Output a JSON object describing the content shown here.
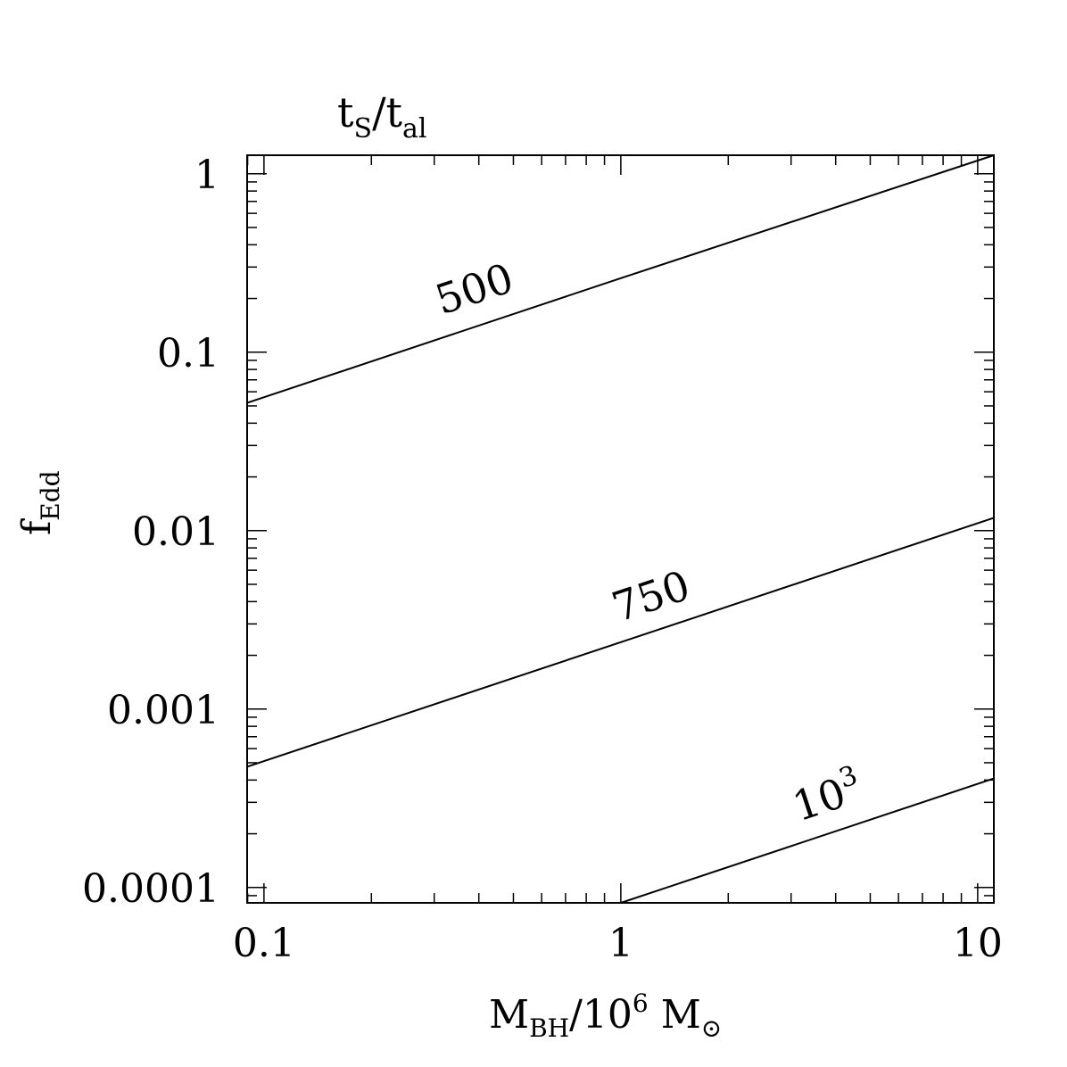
{
  "chart_data": {
    "type": "line",
    "title": {
      "main": "t",
      "sub1": "S",
      "sep": "/t",
      "sub2": "al"
    },
    "xlabel": {
      "main": "M",
      "sub": "BH",
      "mid": "/10",
      "sup": "6",
      "end": " M",
      "sun": "⊙"
    },
    "ylabel": {
      "main": "f",
      "sub": "Edd"
    },
    "xscale": "log",
    "yscale": "log",
    "xlim": [
      0.0897,
      11.1
    ],
    "ylim": [
      8.2e-05,
      1.27
    ],
    "xticks": [
      {
        "value": 0.1,
        "label": "0.1"
      },
      {
        "value": 1,
        "label": "1"
      },
      {
        "value": 10,
        "label": "10"
      }
    ],
    "yticks": [
      {
        "value": 1,
        "label": "1"
      },
      {
        "value": 0.1,
        "label": "0.1"
      },
      {
        "value": 0.01,
        "label": "0.01"
      },
      {
        "value": 0.001,
        "label": "0.001"
      },
      {
        "value": 0.0001,
        "label": "0.0001"
      }
    ],
    "grid": false,
    "series": [
      {
        "name": "500",
        "label": "500",
        "x": [
          0.0897,
          1,
          11.1
        ],
        "y": [
          0.052,
          0.26,
          1.27
        ],
        "label_at": [
          0.4,
          0.19
        ]
      },
      {
        "name": "750",
        "label": "750",
        "x": [
          0.0897,
          1,
          11.1
        ],
        "y": [
          0.000475,
          0.00237,
          0.0118
        ],
        "label_at": [
          1.25,
          0.0036
        ]
      },
      {
        "name": "1000",
        "label": "10",
        "label_sup": "3",
        "x": [
          1,
          11.1
        ],
        "y": [
          8.2e-05,
          0.000408
        ],
        "label_at": [
          3.9,
          0.00027
        ]
      }
    ]
  }
}
